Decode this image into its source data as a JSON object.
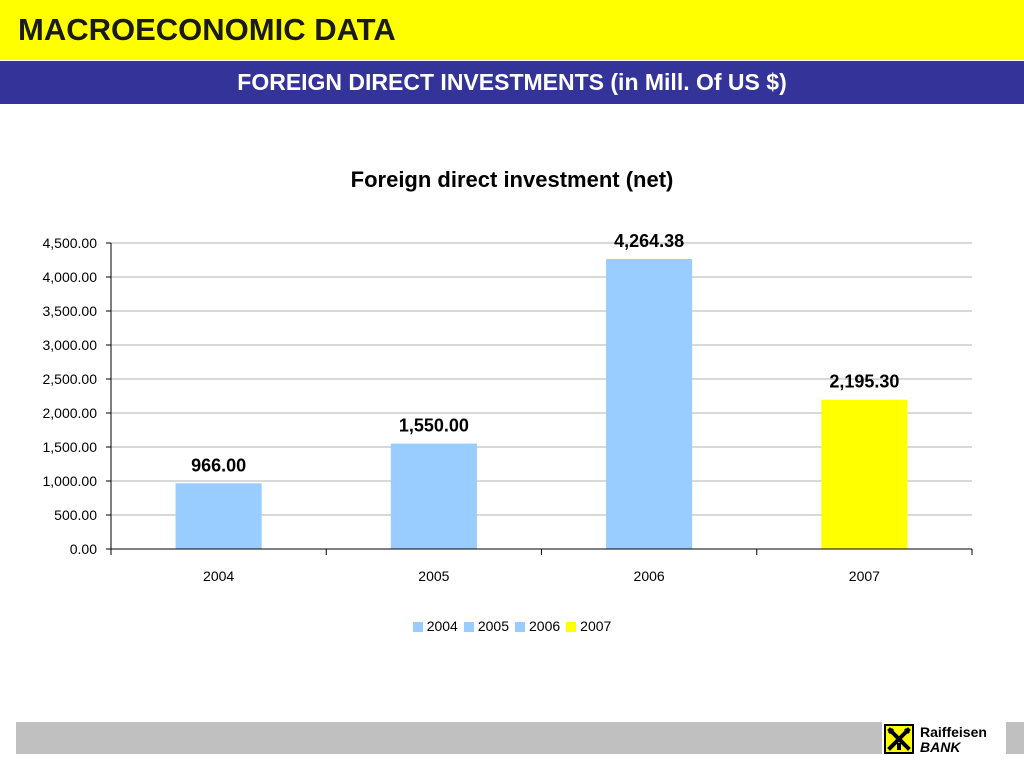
{
  "header": {
    "title": "MACROECONOMIC DATA",
    "subtitle": "FOREIGN DIRECT INVESTMENTS (in Mill. Of US $)"
  },
  "colors": {
    "header_band": "#ffff00",
    "subtitle_band": "#333399",
    "footer_band": "#c0c0c0"
  },
  "chart_data": {
    "type": "bar",
    "title": "Foreign direct investment (net)",
    "categories": [
      "2004",
      "2005",
      "2006",
      "2007"
    ],
    "values": [
      966.0,
      1550.0,
      4264.38,
      2195.3
    ],
    "data_labels": [
      "966.00",
      "1,550.00",
      "4,264.38",
      "2,195.30"
    ],
    "bar_colors": [
      "#99ccff",
      "#99ccff",
      "#99ccff",
      "#ffff00"
    ],
    "ylim": [
      0,
      4500
    ],
    "yticks": [
      0,
      500,
      1000,
      1500,
      2000,
      2500,
      3000,
      3500,
      4000,
      4500
    ],
    "ytick_labels": [
      "0.00",
      "500.00",
      "1,000.00",
      "1,500.00",
      "2,000.00",
      "2,500.00",
      "3,000.00",
      "3,500.00",
      "4,000.00",
      "4,500.00"
    ],
    "xlabel": "",
    "ylabel": "",
    "grid": true,
    "legend": {
      "placement": "bottom",
      "entries": [
        {
          "label": "2004",
          "color": "#99ccff"
        },
        {
          "label": "2005",
          "color": "#99ccff"
        },
        {
          "label": "2006",
          "color": "#99ccff"
        },
        {
          "label": "2007",
          "color": "#ffff00"
        }
      ]
    }
  },
  "logo": {
    "name_line1": "Raiffeisen",
    "name_line2": "BANK",
    "icon": "raiffeisen-crossed-horses-icon"
  }
}
